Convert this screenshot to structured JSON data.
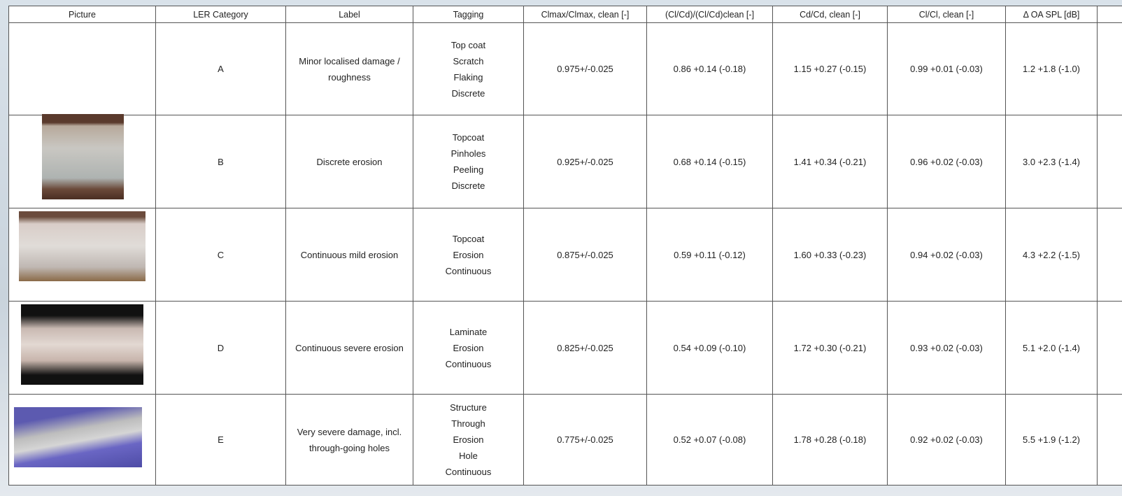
{
  "table": {
    "header": [
      "Picture",
      "LER Category",
      "Label",
      "Tagging",
      "Clmax/Clmax, clean [-]",
      "(Cl/Cd)/(Cl/Cd)clean [-]",
      "Cd/Cd, clean [-]",
      "Cl/Cl, clean [-]",
      "Δ OA SPL [dB]"
    ],
    "rows": [
      {
        "category": "A",
        "label": "Minor localised damage / roughness",
        "tagging": [
          "Top coat",
          "Scratch",
          "Flaking",
          "Discrete"
        ],
        "clmax": "0.975+/-0.025",
        "clcd": "0.86 +0.14 (-0.18)",
        "cd": "1.15 +0.27 (-0.15)",
        "cl": "0.99 +0.01 (-0.03)",
        "spl": "1.2 +1.8 (-1.0)"
      },
      {
        "category": "B",
        "label": "Discrete erosion",
        "tagging": [
          "Topcoat",
          "Pinholes",
          "Peeling",
          "Discrete"
        ],
        "clmax": "0.925+/-0.025",
        "clcd": "0.68 +0.14 (-0.15)",
        "cd": "1.41 +0.34 (-0.21)",
        "cl": "0.96 +0.02 (-0.03)",
        "spl": "3.0 +2.3 (-1.4)"
      },
      {
        "category": "C",
        "label": "Continuous mild erosion",
        "tagging": [
          "Topcoat",
          "Erosion",
          "Continuous"
        ],
        "clmax": "0.875+/-0.025",
        "clcd": "0.59 +0.11 (-0.12)",
        "cd": "1.60 +0.33 (-0.23)",
        "cl": "0.94 +0.02 (-0.03)",
        "spl": "4.3 +2.2 (-1.5)"
      },
      {
        "category": "D",
        "label": "Continuous severe erosion",
        "tagging": [
          "Laminate",
          "Erosion",
          "Continuous"
        ],
        "clmax": "0.825+/-0.025",
        "clcd": "0.54 +0.09 (-0.10)",
        "cd": "1.72 +0.30 (-0.21)",
        "cl": "0.93 +0.02 (-0.03)",
        "spl": "5.1 +2.0 (-1.4)"
      },
      {
        "category": "E",
        "label": "Very severe damage, incl. through-going holes",
        "tagging": [
          "Structure",
          "Through",
          "Erosion",
          "Hole",
          "Continuous"
        ],
        "clmax": "0.775+/-0.025",
        "clcd": "0.52 +0.07 (-0.08)",
        "cd": "1.78 +0.28 (-0.18)",
        "cl": "0.92 +0.02 (-0.03)",
        "spl": "5.5 +1.9 (-1.2)"
      }
    ]
  }
}
